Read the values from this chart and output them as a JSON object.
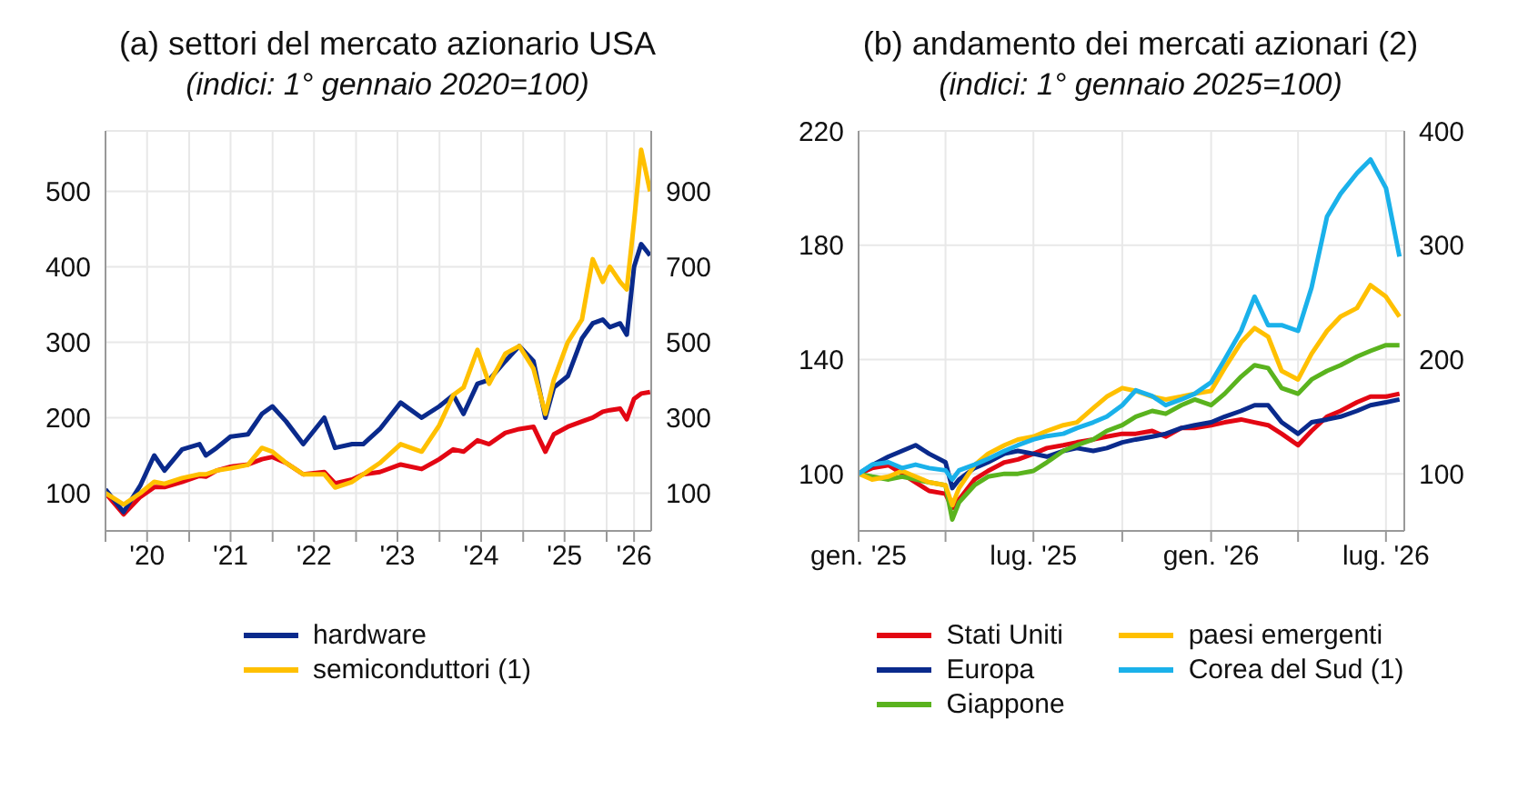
{
  "chart_data": [
    {
      "type": "line",
      "title": "(a) settori del mercato azionario USA",
      "subtitle": "(indici: 1° gennaio 2020=100)",
      "x": [
        "2020-01-01",
        "2020-03-20",
        "2020-06-01",
        "2020-08-01",
        "2020-09-15",
        "2020-12-01",
        "2021-02-15",
        "2021-03-15",
        "2021-05-01",
        "2021-07-01",
        "2021-09-15",
        "2021-11-15",
        "2021-12-31",
        "2022-03-01",
        "2022-05-15",
        "2022-08-15",
        "2022-10-01",
        "2022-12-15",
        "2023-02-01",
        "2023-04-15",
        "2023-07-15",
        "2023-10-15",
        "2023-12-31",
        "2024-03-01",
        "2024-04-15",
        "2024-06-15",
        "2024-08-05",
        "2024-10-15",
        "2024-12-15",
        "2025-02-15",
        "2025-04-08",
        "2025-05-15",
        "2025-07-15",
        "2025-09-15",
        "2025-11-01",
        "2025-12-15",
        "2026-01-15",
        "2026-03-01",
        "2026-03-30",
        "2026-05-01",
        "2026-06-01",
        "2026-07-10"
      ],
      "series": [
        {
          "color": "#e30613",
          "values": [
            100,
            72,
            95,
            108,
            108,
            115,
            123,
            122,
            130,
            135,
            138,
            145,
            148,
            140,
            125,
            128,
            113,
            118,
            125,
            128,
            138,
            132,
            145,
            158,
            155,
            170,
            165,
            180,
            185,
            188,
            155,
            178,
            188,
            195,
            200,
            208,
            210,
            212,
            198,
            225,
            232,
            234
          ]
        },
        {
          "name": "hardware",
          "color": "#0a2a8c",
          "values": [
            105,
            75,
            110,
            150,
            130,
            158,
            165,
            150,
            160,
            175,
            178,
            205,
            215,
            195,
            165,
            200,
            160,
            165,
            165,
            185,
            220,
            200,
            215,
            230,
            205,
            245,
            250,
            275,
            295,
            275,
            200,
            240,
            255,
            305,
            325,
            330,
            320,
            325,
            310,
            400,
            430,
            415
          ]
        },
        {
          "name": "semiconduttori (1)",
          "color": "#ffc000",
          "axis": "y2",
          "values": [
            100,
            70,
            100,
            130,
            125,
            140,
            150,
            150,
            160,
            166,
            175,
            220,
            210,
            180,
            150,
            150,
            115,
            130,
            150,
            180,
            230,
            210,
            280,
            360,
            380,
            480,
            390,
            470,
            490,
            430,
            310,
            400,
            500,
            560,
            720,
            660,
            700,
            660,
            640,
            820,
            1010,
            900
          ]
        }
      ],
      "xlim": [
        "2020-01-01",
        "2026-07-15"
      ],
      "xticks": [
        {
          "value": "2020-01-01",
          "label": null
        },
        {
          "value": "2020-07-01",
          "label": "'20"
        },
        {
          "value": "2021-01-01",
          "label": null
        },
        {
          "value": "2021-07-01",
          "label": "'21"
        },
        {
          "value": "2022-01-01",
          "label": null
        },
        {
          "value": "2022-07-01",
          "label": "'22"
        },
        {
          "value": "2023-01-01",
          "label": null
        },
        {
          "value": "2023-07-01",
          "label": "'23"
        },
        {
          "value": "2024-01-01",
          "label": null
        },
        {
          "value": "2024-07-01",
          "label": "'24"
        },
        {
          "value": "2025-01-01",
          "label": null
        },
        {
          "value": "2025-07-01",
          "label": "'25"
        },
        {
          "value": "2026-01-01",
          "label": null
        },
        {
          "value": "2026-05-01",
          "label": "'26"
        }
      ],
      "ylim": [
        50,
        580
      ],
      "yticks": [
        100,
        200,
        300,
        400,
        500
      ],
      "y2lim": [
        0,
        1060
      ],
      "y2ticks": [
        100,
        300,
        500,
        700,
        900
      ],
      "grid": true,
      "legend": "bottom"
    },
    {
      "type": "line",
      "title": "(b) andamento dei mercati azionari (2)",
      "subtitle": "(indici: 1° gennaio 2025=100)",
      "x": [
        "2025-01-01",
        "2025-01-15",
        "2025-02-01",
        "2025-02-15",
        "2025-03-01",
        "2025-03-15",
        "2025-04-01",
        "2025-04-08",
        "2025-04-15",
        "2025-05-01",
        "2025-05-15",
        "2025-06-01",
        "2025-06-15",
        "2025-07-01",
        "2025-07-15",
        "2025-08-01",
        "2025-08-15",
        "2025-09-01",
        "2025-09-15",
        "2025-10-01",
        "2025-10-15",
        "2025-11-01",
        "2025-11-15",
        "2025-12-01",
        "2025-12-15",
        "2026-01-01",
        "2026-01-15",
        "2026-02-01",
        "2026-02-15",
        "2026-03-01",
        "2026-03-15",
        "2026-04-01",
        "2026-04-15",
        "2026-05-01",
        "2026-05-15",
        "2026-06-01",
        "2026-06-15",
        "2026-07-01",
        "2026-07-15"
      ],
      "series": [
        {
          "name": "Stati Uniti",
          "color": "#e30613",
          "values": [
            100,
            102,
            103,
            100,
            97,
            94,
            93,
            88,
            91,
            98,
            101,
            104,
            105,
            107,
            109,
            110,
            111,
            112,
            113,
            114,
            114,
            115,
            113,
            116,
            116,
            117,
            118,
            119,
            118,
            117,
            114,
            110,
            115,
            120,
            122,
            125,
            127,
            127,
            128
          ]
        },
        {
          "name": "Europa",
          "color": "#0a2a8c",
          "values": [
            100,
            103,
            106,
            108,
            110,
            107,
            104,
            95,
            98,
            102,
            104,
            107,
            108,
            107,
            106,
            108,
            109,
            108,
            109,
            111,
            112,
            113,
            114,
            116,
            117,
            118,
            120,
            122,
            124,
            124,
            118,
            114,
            118,
            119,
            120,
            122,
            124,
            125,
            126
          ]
        },
        {
          "name": "Giappone",
          "color": "#5ab31e",
          "values": [
            100,
            99,
            98,
            99,
            98,
            97,
            96,
            84,
            90,
            96,
            99,
            100,
            100,
            101,
            104,
            108,
            110,
            112,
            115,
            117,
            120,
            122,
            121,
            124,
            126,
            124,
            128,
            134,
            138,
            137,
            130,
            128,
            133,
            136,
            138,
            141,
            143,
            145,
            145
          ]
        },
        {
          "name": "paesi emergenti",
          "color": "#ffc000",
          "values": [
            100,
            98,
            99,
            101,
            99,
            97,
            96,
            89,
            95,
            103,
            107,
            110,
            112,
            113,
            115,
            117,
            118,
            123,
            127,
            130,
            129,
            127,
            126,
            127,
            128,
            129,
            137,
            146,
            151,
            148,
            136,
            133,
            142,
            150,
            155,
            158,
            166,
            162,
            155
          ]
        },
        {
          "name": "Corea del Sud (1)",
          "color": "#1ab1ea",
          "axis": "y2",
          "values": [
            100,
            108,
            110,
            105,
            108,
            105,
            103,
            95,
            103,
            108,
            113,
            120,
            125,
            130,
            133,
            135,
            140,
            145,
            150,
            160,
            173,
            168,
            160,
            165,
            170,
            180,
            200,
            225,
            255,
            230,
            230,
            225,
            263,
            325,
            345,
            363,
            375,
            350,
            290
          ]
        }
      ],
      "xlim": [
        "2025-01-01",
        "2026-07-20"
      ],
      "xticks": [
        {
          "value": "2025-01-01",
          "label": "gen. '25"
        },
        {
          "value": "2025-04-01",
          "label": null
        },
        {
          "value": "2025-07-01",
          "label": "lug. '25"
        },
        {
          "value": "2025-10-01",
          "label": null
        },
        {
          "value": "2026-01-01",
          "label": "gen. '26"
        },
        {
          "value": "2026-04-01",
          "label": null
        },
        {
          "value": "2026-07-01",
          "label": "lug. '26"
        }
      ],
      "ylim": [
        80,
        220
      ],
      "yticks": [
        100,
        140,
        180,
        220
      ],
      "y2lim": [
        50,
        400
      ],
      "y2ticks": [
        100,
        200,
        300,
        400
      ],
      "grid": true,
      "legend": "bottom"
    }
  ]
}
